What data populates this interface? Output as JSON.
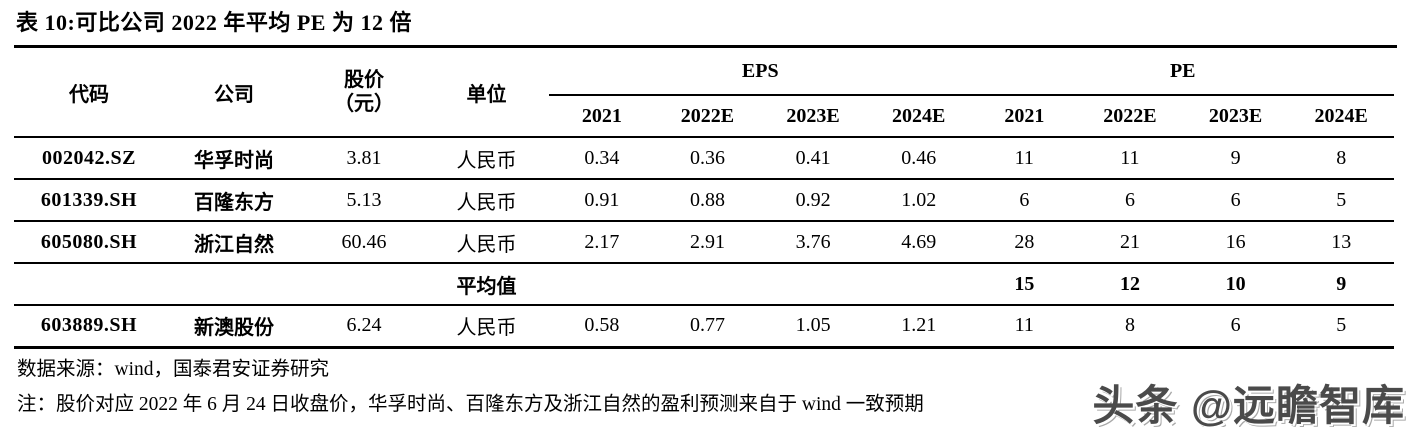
{
  "title": "表 10:可比公司 2022 年平均 PE 为 12 倍",
  "table": {
    "headers": {
      "code": "代码",
      "company": "公司",
      "price_line1": "股价",
      "price_line2": "（元）",
      "unit": "单位",
      "eps_group": "EPS",
      "pe_group": "PE",
      "eps_years": [
        "2021",
        "2022E",
        "2023E",
        "2024E"
      ],
      "pe_years": [
        "2021",
        "2022E",
        "2023E",
        "2024E"
      ]
    },
    "rows": [
      {
        "code": "002042.SZ",
        "company": "华孚时尚",
        "price": "3.81",
        "unit": "人民币",
        "eps": [
          "0.34",
          "0.36",
          "0.41",
          "0.46"
        ],
        "pe": [
          "11",
          "11",
          "9",
          "8"
        ]
      },
      {
        "code": "601339.SH",
        "company": "百隆东方",
        "price": "5.13",
        "unit": "人民币",
        "eps": [
          "0.91",
          "0.88",
          "0.92",
          "1.02"
        ],
        "pe": [
          "6",
          "6",
          "6",
          "5"
        ]
      },
      {
        "code": "605080.SH",
        "company": "浙江自然",
        "price": "60.46",
        "unit": "人民币",
        "eps": [
          "2.17",
          "2.91",
          "3.76",
          "4.69"
        ],
        "pe": [
          "28",
          "21",
          "16",
          "13"
        ]
      }
    ],
    "average_row": {
      "label": "平均值",
      "pe": [
        "15",
        "12",
        "10",
        "9"
      ]
    },
    "extra_row": {
      "code": "603889.SH",
      "company": "新澳股份",
      "price": "6.24",
      "unit": "人民币",
      "eps": [
        "0.58",
        "0.77",
        "1.05",
        "1.21"
      ],
      "pe": [
        "11",
        "8",
        "6",
        "5"
      ]
    }
  },
  "source": "数据来源：wind，国泰君安证券研究",
  "note": "注：股价对应 2022 年 6 月 24 日收盘价，华孚时尚、百隆东方及浙江自然的盈利预测来自于 wind 一致预期",
  "watermark": "头条 @远瞻智库",
  "colors": {
    "text": "#000000",
    "rule": "#000000",
    "watermark_gray": "#4a4a4a"
  }
}
